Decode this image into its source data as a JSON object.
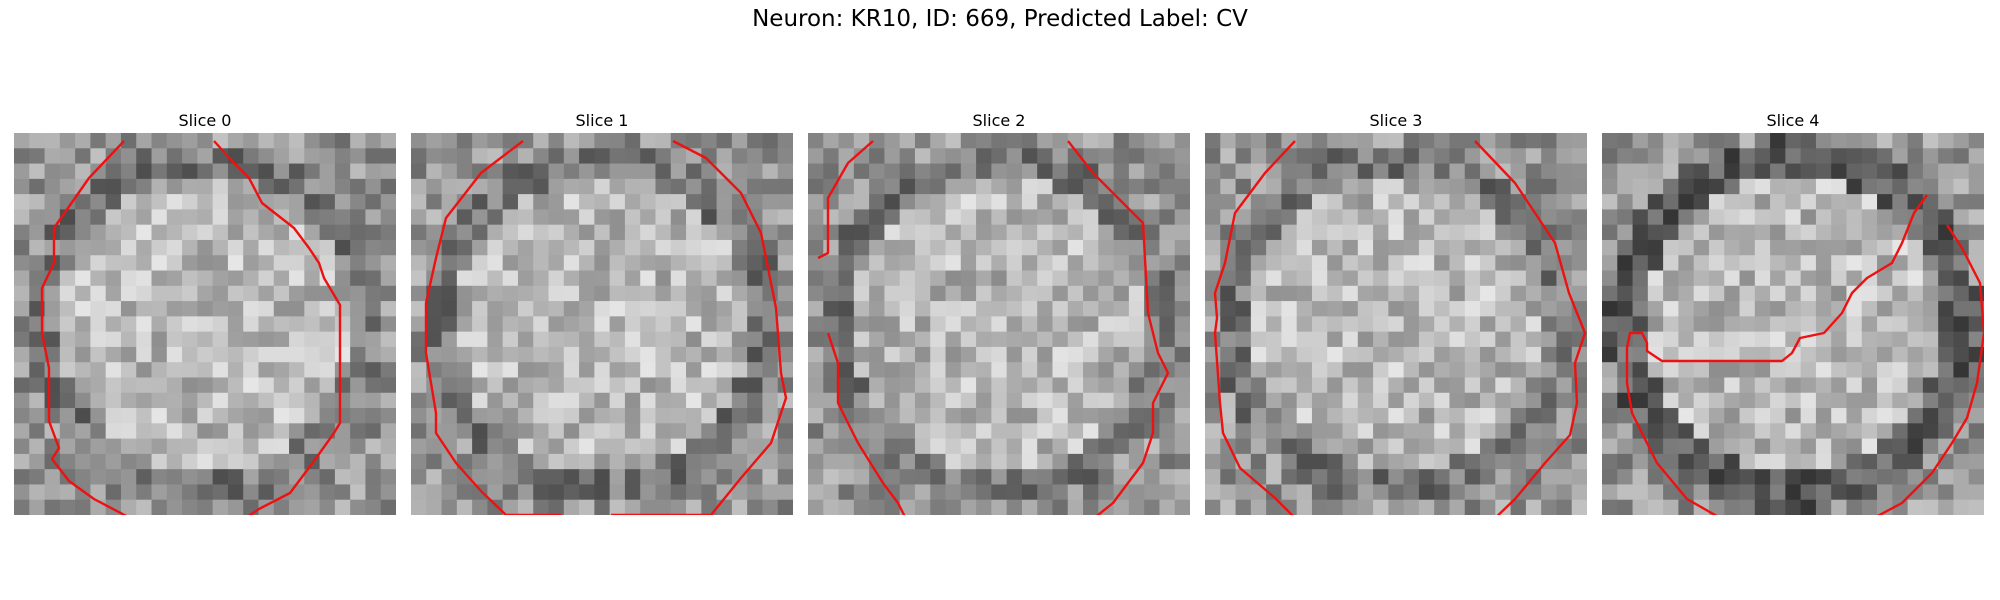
{
  "figure": {
    "title": "Neuron: KR10, ID: 669, Predicted Label: CV"
  },
  "panels": [
    {
      "title": "Slice 0",
      "seed": 11
    },
    {
      "title": "Slice 1",
      "seed": 23
    },
    {
      "title": "Slice 2",
      "seed": 37
    },
    {
      "title": "Slice 3",
      "seed": 51
    },
    {
      "title": "Slice 4",
      "seed": 67
    }
  ],
  "overlay_color": "#ee1111",
  "colormap": "gray"
}
